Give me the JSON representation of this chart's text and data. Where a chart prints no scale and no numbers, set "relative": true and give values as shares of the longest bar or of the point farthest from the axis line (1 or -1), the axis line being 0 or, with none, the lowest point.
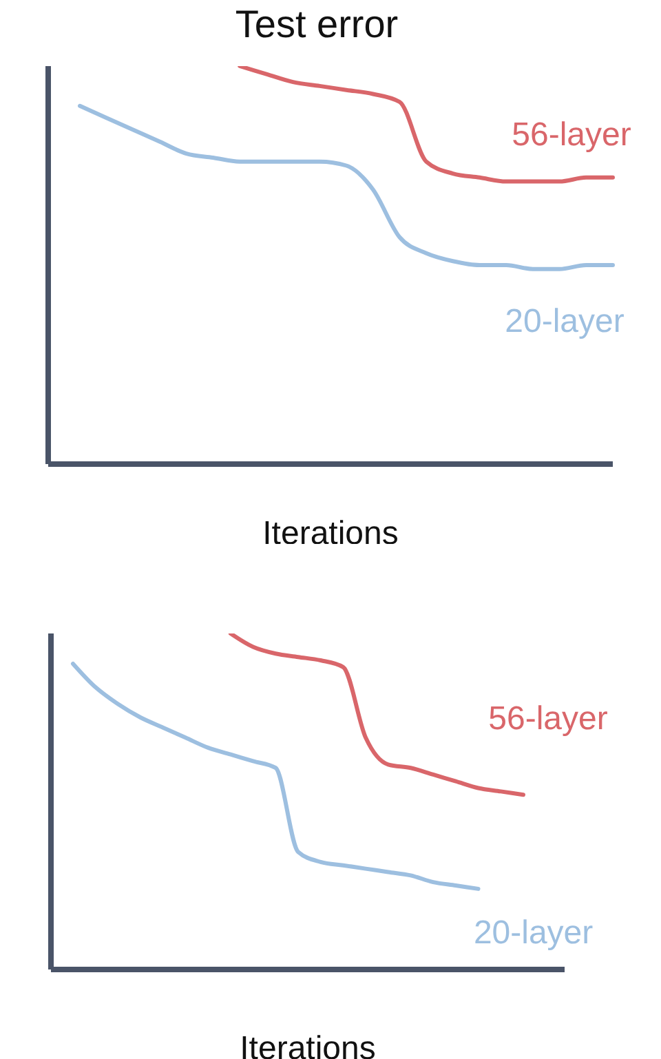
{
  "chart_data": [
    {
      "type": "line",
      "title": "Test error",
      "xlabel": "Iterations",
      "relative": true,
      "grid": false,
      "legend": false,
      "marker": "none",
      "line_style": "solid",
      "categories": [
        null,
        null,
        null,
        null,
        null,
        null,
        null,
        null,
        null,
        null,
        null,
        null,
        null,
        null,
        null,
        null,
        null,
        null,
        null,
        null,
        null
      ],
      "series": [
        {
          "name": "56-layer",
          "color": "#d9666a",
          "values": [
            null,
            null,
            null,
            null,
            null,
            null,
            1.0,
            0.98,
            0.96,
            0.95,
            0.94,
            0.93,
            0.91,
            0.76,
            0.73,
            0.72,
            0.71,
            0.71,
            0.71,
            0.72,
            0.72
          ]
        },
        {
          "name": "20-layer",
          "color": "#9dbfe0",
          "values": [
            0.9,
            0.87,
            0.84,
            0.81,
            0.78,
            0.77,
            0.76,
            0.76,
            0.76,
            0.76,
            0.75,
            0.69,
            0.57,
            0.53,
            0.51,
            0.5,
            0.5,
            0.49,
            0.49,
            0.5,
            0.5
          ]
        }
      ]
    },
    {
      "type": "line",
      "xlabel": "Iterations",
      "relative": true,
      "grid": false,
      "legend": false,
      "marker": "none",
      "line_style": "solid",
      "categories": [
        null,
        null,
        null,
        null,
        null,
        null,
        null,
        null,
        null,
        null,
        null,
        null,
        null,
        null,
        null,
        null,
        null,
        null,
        null,
        null,
        null
      ],
      "series": [
        {
          "name": "56-layer",
          "color": "#d9666a",
          "values": [
            null,
            null,
            null,
            null,
            null,
            null,
            null,
            1.0,
            0.96,
            0.94,
            0.93,
            0.92,
            0.9,
            0.69,
            0.61,
            0.6,
            0.58,
            0.56,
            0.54,
            0.53,
            0.52
          ]
        },
        {
          "name": "20-layer",
          "color": "#9dbfe0",
          "values": [
            0.91,
            0.84,
            0.79,
            0.75,
            0.72,
            0.69,
            0.66,
            0.64,
            0.62,
            0.6,
            0.35,
            0.32,
            0.31,
            0.3,
            0.29,
            0.28,
            0.26,
            0.25,
            0.24,
            null,
            null
          ]
        }
      ]
    }
  ]
}
